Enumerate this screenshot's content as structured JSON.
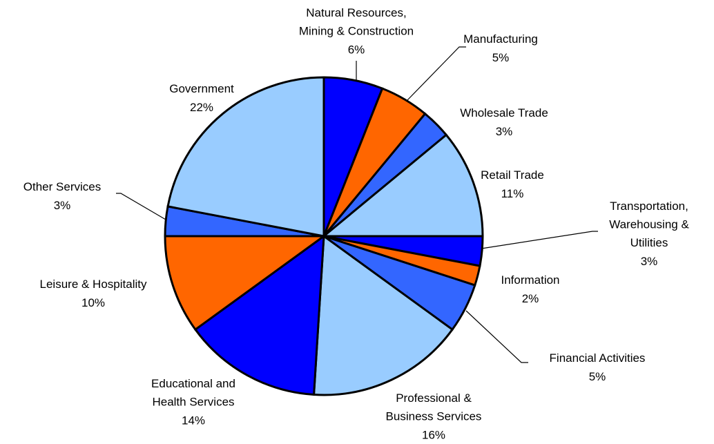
{
  "chart_data": {
    "type": "pie",
    "categories": [
      "Natural Resources,\nMining & Construction",
      "Manufacturing",
      "Wholesale Trade",
      "Retail Trade",
      "Transportation,\nWarehousing &\nUtilities",
      "Information",
      "Financial Activities",
      "Professional &\nBusiness Services",
      "Educational and\nHealth Services",
      "Leisure & Hospitality",
      "Other Services",
      "Government"
    ],
    "values": [
      6,
      5,
      3,
      11,
      3,
      2,
      5,
      16,
      14,
      10,
      3,
      22
    ],
    "value_labels": [
      "6%",
      "5%",
      "3%",
      "11%",
      "3%",
      "2%",
      "5%",
      "16%",
      "14%",
      "10%",
      "3%",
      "22%"
    ],
    "colors": [
      "#0000ff",
      "#ff6600",
      "#3366ff",
      "#99ccff",
      "#0000ff",
      "#ff6600",
      "#3366ff",
      "#99ccff",
      "#0000ff",
      "#ff6600",
      "#3366ff",
      "#99ccff"
    ]
  }
}
